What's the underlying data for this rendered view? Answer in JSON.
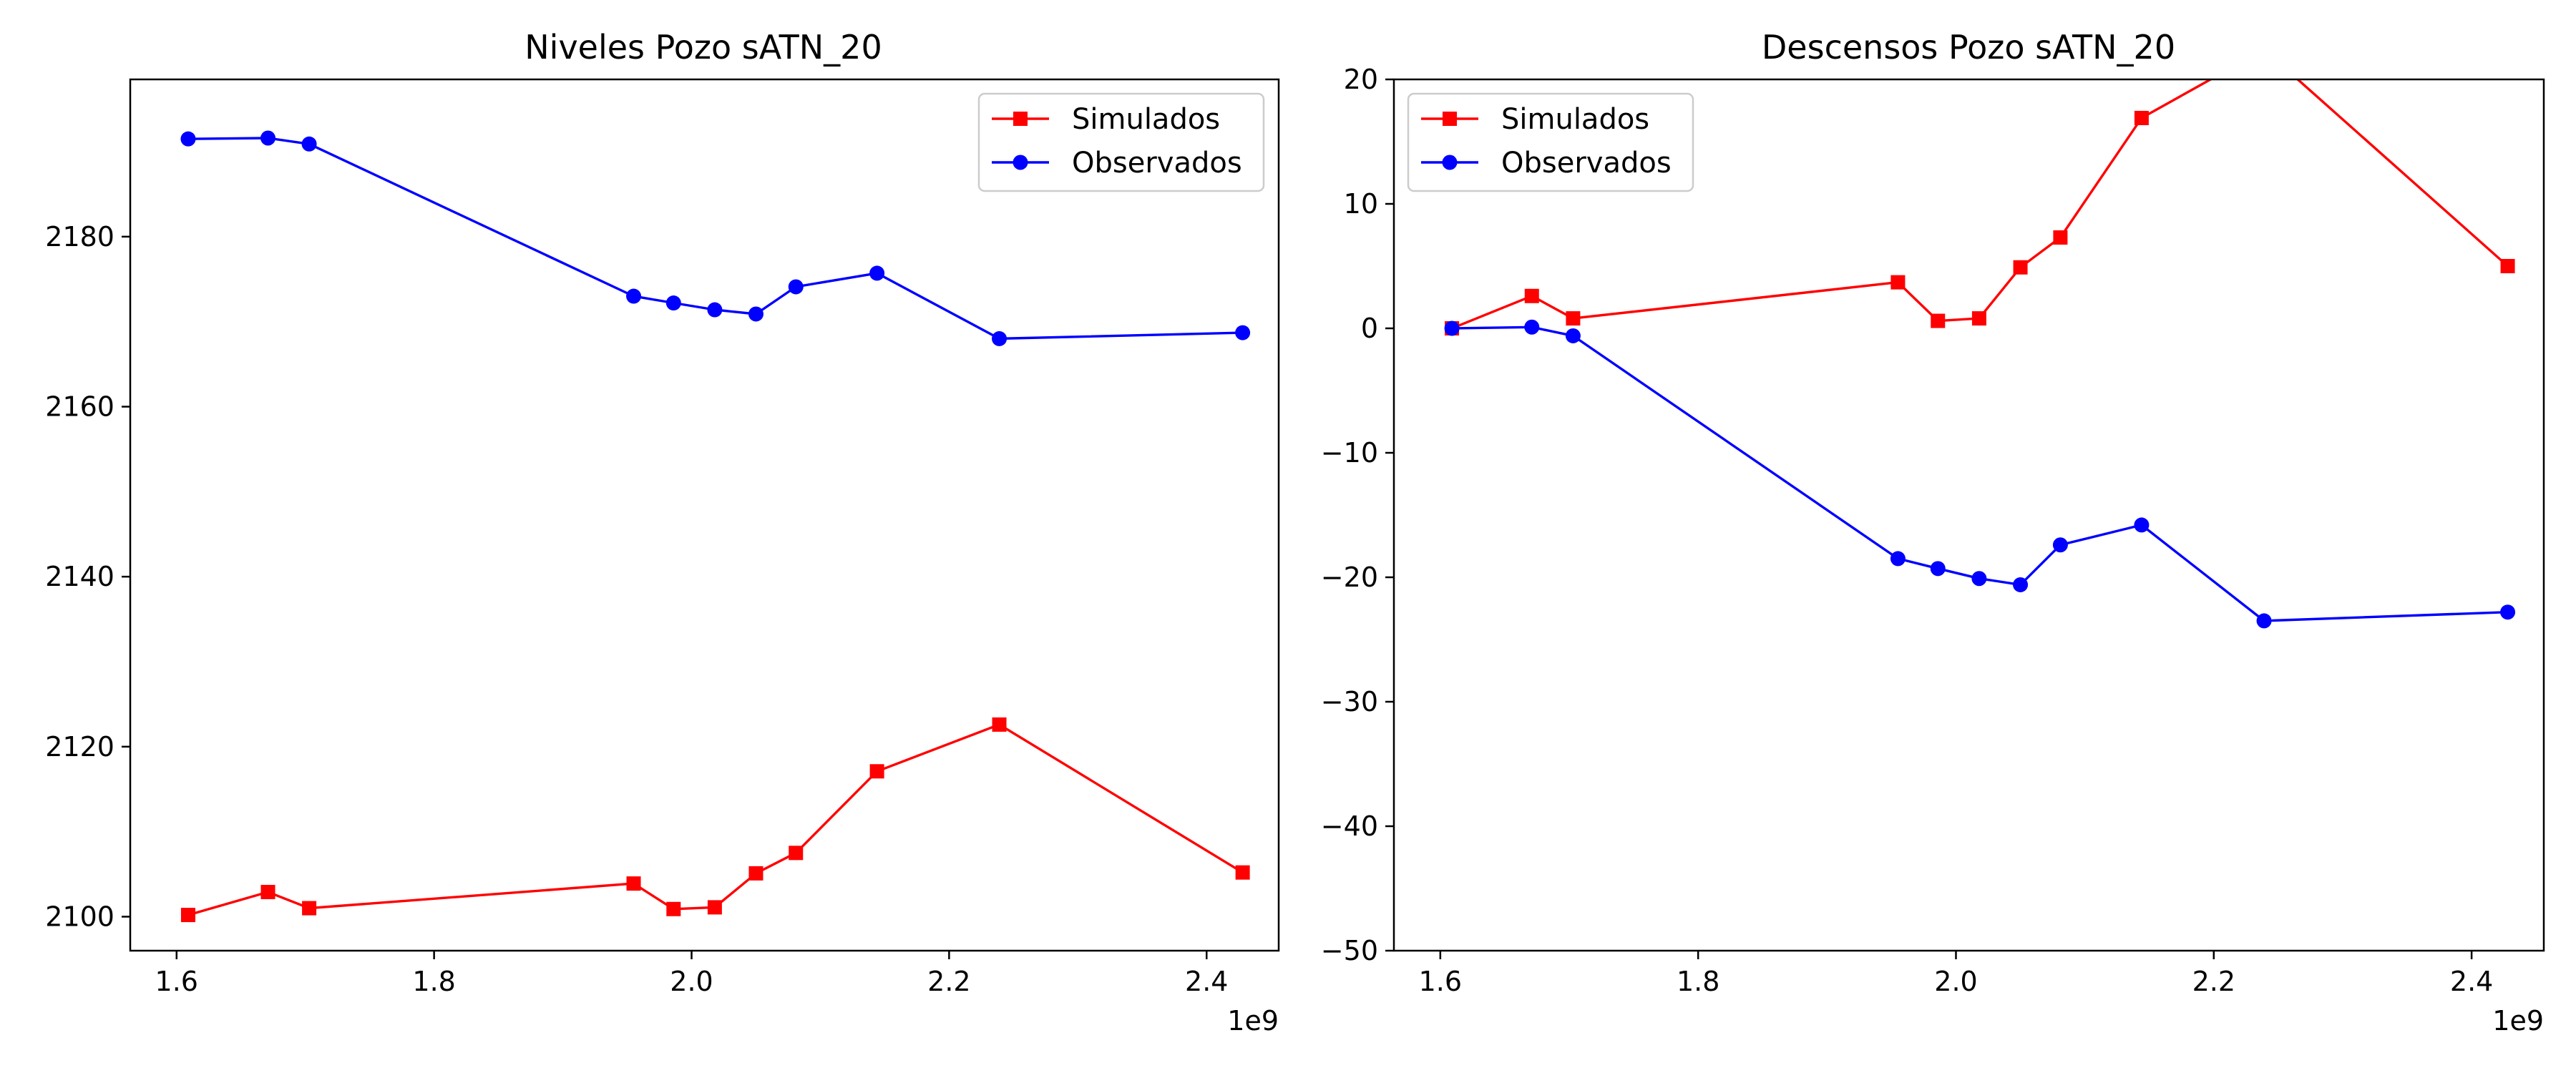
{
  "colors": {
    "simulated": "#ff0000",
    "observed": "#0000ff",
    "axes": "#000000",
    "background": "#ffffff"
  },
  "chart_data": [
    {
      "type": "line",
      "title": "Niveles Pozo sATN_20",
      "xlabel": "",
      "ylabel": "",
      "x_offset_label": "1e9",
      "xlim": [
        1.564,
        2.456
      ],
      "ylim": [
        2096,
        2198.5
      ],
      "xticks": [
        1.6,
        1.8,
        2.0,
        2.2,
        2.4
      ],
      "xtick_labels": [
        "1.6",
        "1.8",
        "2.0",
        "2.2",
        "2.4"
      ],
      "yticks": [
        2100,
        2120,
        2140,
        2160,
        2180
      ],
      "ytick_labels": [
        "2100",
        "2120",
        "2140",
        "2160",
        "2180"
      ],
      "grid": false,
      "legend_position": "upper right",
      "x": [
        1.609,
        1.671,
        1.703,
        1.955,
        1.986,
        2.018,
        2.05,
        2.081,
        2.144,
        2.239,
        2.428
      ],
      "series": [
        {
          "name": "Simulados",
          "marker": "square",
          "color": "#ff0000",
          "values": [
            2100.2,
            2102.9,
            2101.0,
            2103.9,
            2100.9,
            2101.1,
            2105.1,
            2107.5,
            2117.1,
            2122.6,
            2105.2
          ]
        },
        {
          "name": "Observados",
          "marker": "circle",
          "color": "#0000ff",
          "values": [
            2191.5,
            2191.6,
            2190.9,
            2173.0,
            2172.2,
            2171.4,
            2170.9,
            2174.1,
            2175.7,
            2168.0,
            2168.7
          ]
        }
      ]
    },
    {
      "type": "line",
      "title": "Descensos Pozo sATN_20",
      "xlabel": "",
      "ylabel": "",
      "x_offset_label": "1e9",
      "xlim": [
        1.564,
        2.456
      ],
      "ylim": [
        -50,
        20
      ],
      "xticks": [
        1.6,
        1.8,
        2.0,
        2.2,
        2.4
      ],
      "xtick_labels": [
        "1.6",
        "1.8",
        "2.0",
        "2.2",
        "2.4"
      ],
      "yticks": [
        -50,
        -40,
        -30,
        -20,
        -10,
        0,
        10,
        20
      ],
      "ytick_labels": [
        "−50",
        "−40",
        "−30",
        "−20",
        "−10",
        "0",
        "10",
        "20"
      ],
      "grid": false,
      "legend_position": "upper left",
      "x": [
        1.609,
        1.671,
        1.703,
        1.955,
        1.986,
        2.018,
        2.05,
        2.081,
        2.144,
        2.239,
        2.428
      ],
      "series": [
        {
          "name": "Simulados",
          "marker": "square",
          "color": "#ff0000",
          "values": [
            0.0,
            2.6,
            0.8,
            3.7,
            0.6,
            0.8,
            4.9,
            7.3,
            16.9,
            22.4,
            5.0
          ]
        },
        {
          "name": "Observados",
          "marker": "circle",
          "color": "#0000ff",
          "values": [
            0.0,
            0.1,
            -0.6,
            -18.5,
            -19.3,
            -20.1,
            -20.6,
            -17.4,
            -15.8,
            -23.5,
            -22.8
          ]
        }
      ]
    }
  ]
}
